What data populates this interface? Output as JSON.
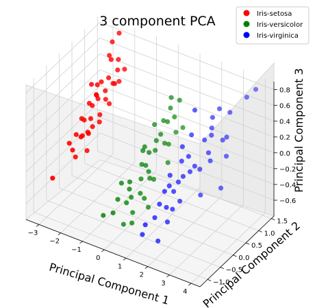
{
  "chart_data": {
    "type": "scatter",
    "projection": "3d",
    "title": "3 component PCA",
    "xlabel": "Principal Component 1",
    "ylabel": "Principal Component 2",
    "zlabel": "Principal Component 3",
    "xlim": [
      -3.6,
      4.4
    ],
    "ylim": [
      -1.3,
      1.6
    ],
    "zlim": [
      -0.8,
      0.9
    ],
    "xticks": [
      "−3",
      "−2",
      "−1",
      "0",
      "1",
      "2",
      "3",
      "4"
    ],
    "yticks": [
      "−1.0",
      "−0.5",
      "0.0",
      "0.5",
      "1.0",
      "1.5"
    ],
    "zticks": [
      "−0.6",
      "−0.4",
      "−0.2",
      "0.0",
      "0.2",
      "0.4",
      "0.6",
      "0.8"
    ],
    "grid": true,
    "legend_position": "top-right",
    "series": [
      {
        "name": "Iris-setosa",
        "color": "#ff0000",
        "points": [
          [
            -2.7,
            1.2,
            0.6
          ],
          [
            -2.8,
            0.2,
            0.1
          ],
          [
            -2.6,
            0.6,
            0.3
          ],
          [
            -2.9,
            -0.2,
            -0.1
          ],
          [
            -2.5,
            1.0,
            0.4
          ],
          [
            -2.4,
            0.8,
            0.2
          ],
          [
            -2.2,
            1.1,
            0.5
          ],
          [
            -3.0,
            0.4,
            -0.2
          ],
          [
            -2.7,
            -0.1,
            0.0
          ],
          [
            -2.8,
            0.5,
            0.2
          ],
          [
            -2.5,
            0.3,
            0.1
          ],
          [
            -2.3,
            0.7,
            0.35
          ],
          [
            -2.6,
            0.0,
            -0.05
          ],
          [
            -2.9,
            0.9,
            0.3
          ],
          [
            -2.4,
            1.3,
            0.55
          ],
          [
            -2.1,
            0.9,
            0.4
          ],
          [
            -2.2,
            0.4,
            0.15
          ],
          [
            -2.7,
            0.7,
            0.25
          ],
          [
            -2.5,
            -0.3,
            -0.2
          ],
          [
            -2.3,
            0.2,
            0.05
          ],
          [
            -2.8,
            1.4,
            0.7
          ],
          [
            -2.6,
            1.5,
            0.8
          ],
          [
            -2.0,
            0.6,
            0.25
          ],
          [
            -3.1,
            0.1,
            -0.3
          ],
          [
            -2.4,
            0.1,
            0.0
          ],
          [
            -2.6,
            0.3,
            -0.1
          ],
          [
            -2.9,
            0.7,
            0.1
          ],
          [
            -2.2,
            -0.1,
            -0.15
          ],
          [
            -3.2,
            -0.6,
            -0.45
          ],
          [
            -2.7,
            0.5,
            0.45
          ],
          [
            -2.5,
            1.1,
            0.6
          ],
          [
            -2.3,
            1.0,
            0.35
          ],
          [
            -2.0,
            1.2,
            0.5
          ],
          [
            -2.6,
            0.8,
            0.4
          ],
          [
            -2.8,
            0.3,
            0.05
          ],
          [
            -2.4,
            0.5,
            0.3
          ],
          [
            -2.1,
            0.3,
            0.1
          ],
          [
            -1.9,
            0.9,
            0.45
          ]
        ]
      },
      {
        "name": "Iris-versicolor",
        "color": "#008000",
        "points": [
          [
            0.5,
            0.6,
            0.3
          ],
          [
            0.1,
            -0.4,
            -0.3
          ],
          [
            0.3,
            0.2,
            0.0
          ],
          [
            -0.2,
            -0.6,
            -0.4
          ],
          [
            0.6,
            0.4,
            0.2
          ],
          [
            0.4,
            -0.2,
            -0.2
          ],
          [
            0.8,
            0.5,
            0.35
          ],
          [
            -0.4,
            -1.0,
            -0.5
          ],
          [
            0.2,
            0.0,
            -0.1
          ],
          [
            0.7,
            0.1,
            0.1
          ],
          [
            0.0,
            -0.3,
            -0.25
          ],
          [
            0.9,
            0.3,
            0.15
          ],
          [
            0.5,
            -0.1,
            -0.05
          ],
          [
            1.0,
            0.6,
            0.4
          ],
          [
            0.3,
            -0.5,
            -0.35
          ],
          [
            -0.1,
            0.3,
            -0.05
          ],
          [
            0.6,
            -0.4,
            -0.3
          ],
          [
            1.2,
            0.2,
            0.2
          ],
          [
            0.4,
            0.4,
            0.1
          ],
          [
            0.8,
            -0.2,
            -0.15
          ],
          [
            -0.3,
            -0.7,
            -0.55
          ],
          [
            0.2,
            0.5,
            0.25
          ],
          [
            1.1,
            -0.3,
            -0.1
          ],
          [
            0.7,
            0.7,
            0.45
          ],
          [
            0.9,
            -0.5,
            -0.3
          ],
          [
            0.1,
            0.2,
            0.05
          ],
          [
            1.3,
            0.4,
            0.3
          ],
          [
            0.5,
            0.9,
            0.5
          ],
          [
            0.6,
            -0.7,
            -0.45
          ],
          [
            1.4,
            0.0,
            0.05
          ],
          [
            0.3,
            -0.8,
            -0.6
          ],
          [
            -0.5,
            -0.2,
            -0.35
          ],
          [
            1.0,
            0.8,
            0.55
          ],
          [
            0.8,
            -0.9,
            -0.5
          ],
          [
            0.2,
            -0.6,
            -0.4
          ],
          [
            1.5,
            0.5,
            0.35
          ],
          [
            0.4,
            0.1,
            -0.2
          ],
          [
            1.2,
            -0.6,
            -0.35
          ]
        ]
      },
      {
        "name": "Iris-virginica",
        "color": "#0000ff",
        "points": [
          [
            2.5,
            0.5,
            0.3
          ],
          [
            1.6,
            -0.3,
            -0.2
          ],
          [
            2.8,
            0.4,
            0.2
          ],
          [
            2.0,
            -0.1,
            -0.1
          ],
          [
            2.4,
            0.2,
            0.05
          ],
          [
            3.4,
            0.6,
            0.4
          ],
          [
            1.3,
            -0.8,
            -0.5
          ],
          [
            3.0,
            0.3,
            0.15
          ],
          [
            2.2,
            -0.5,
            -0.3
          ],
          [
            3.2,
            0.9,
            0.6
          ],
          [
            2.0,
            0.3,
            0.1
          ],
          [
            1.9,
            -0.2,
            -0.2
          ],
          [
            2.3,
            0.1,
            0.0
          ],
          [
            1.5,
            -0.6,
            -0.45
          ],
          [
            1.8,
            -0.4,
            -0.35
          ],
          [
            2.1,
            0.0,
            -0.05
          ],
          [
            1.9,
            0.5,
            0.3
          ],
          [
            3.5,
            1.3,
            0.7
          ],
          [
            3.6,
            0.2,
            -0.1
          ],
          [
            1.4,
            -1.0,
            -0.55
          ],
          [
            2.6,
            0.7,
            0.4
          ],
          [
            1.6,
            -0.5,
            -0.3
          ],
          [
            3.5,
            0.5,
            0.2
          ],
          [
            1.7,
            -0.2,
            -0.15
          ],
          [
            2.4,
            0.9,
            0.45
          ],
          [
            2.7,
            0.6,
            0.35
          ],
          [
            1.5,
            0.0,
            -0.1
          ],
          [
            1.6,
            0.4,
            0.15
          ],
          [
            2.2,
            -0.7,
            -0.4
          ],
          [
            2.6,
            1.0,
            0.55
          ],
          [
            2.9,
            0.0,
            -0.2
          ],
          [
            3.8,
            1.4,
            0.8
          ],
          [
            2.3,
            -0.3,
            -0.25
          ],
          [
            1.7,
            0.8,
            0.5
          ],
          [
            2.0,
            -0.9,
            -0.6
          ],
          [
            3.1,
            0.7,
            0.3
          ],
          [
            2.4,
            0.4,
            -0.05
          ],
          [
            1.8,
            0.2,
            0.05
          ]
        ]
      }
    ]
  }
}
